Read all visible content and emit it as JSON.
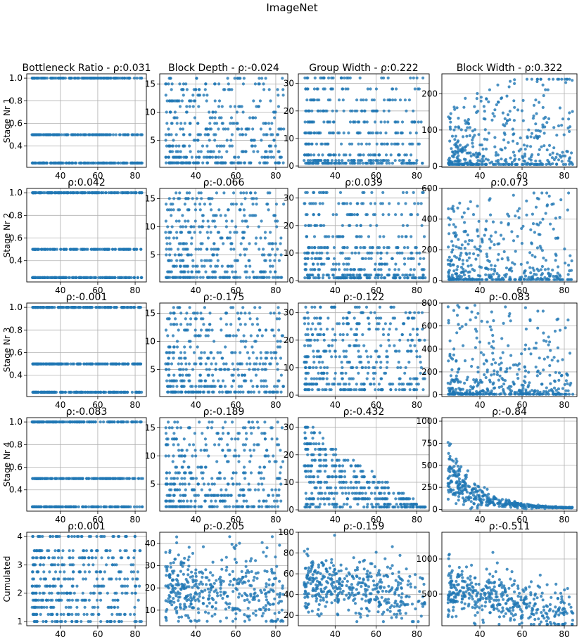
{
  "suptitle": "ImageNet",
  "xaxis": {
    "ticks": [
      40,
      60,
      80
    ],
    "lim": [
      22,
      86
    ]
  },
  "point_color": "#1f77b4",
  "chart_data": {
    "type": "scatter",
    "xlabel": "",
    "grid": true,
    "row_labels": [
      "Stage Nr 1",
      "Stage Nr 2",
      "Stage Nr 3",
      "Stage Nr 4",
      "Cumulated"
    ],
    "panels": [
      [
        {
          "title": "Bottleneck Ratio - ρ:0.031",
          "yticks": [
            "0.4",
            "0.6",
            "0.8",
            "1.0"
          ],
          "ytickvals": [
            0.4,
            0.6,
            0.8,
            1.0
          ],
          "ylim": [
            0.212,
            1.038
          ],
          "dist": {
            "kind": "levels",
            "levels": [
              0.25,
              0.5,
              1.0
            ]
          }
        },
        {
          "title": "Block Depth - ρ:-0.024",
          "yticks": [
            "5",
            "10",
            "15"
          ],
          "ytickvals": [
            5,
            10,
            15
          ],
          "ylim": [
            0.2,
            16.8
          ],
          "dist": {
            "kind": "ints",
            "min": 1,
            "max": 16
          }
        },
        {
          "title": "Group Width - ρ:0.222",
          "yticks": [
            "0",
            "10",
            "20",
            "30"
          ],
          "ytickvals": [
            0,
            10,
            20,
            30
          ],
          "ylim": [
            -0.5,
            33.5
          ],
          "dist": {
            "kind": "groups",
            "vals": [
              1,
              2,
              4,
              8,
              12,
              16,
              20,
              24,
              28,
              32
            ]
          }
        },
        {
          "title": "Block Width - ρ:0.322",
          "yticks": [
            "0",
            "100",
            "200"
          ],
          "ytickvals": [
            0,
            100,
            200
          ],
          "ylim": [
            -3,
            255
          ],
          "dist": {
            "kind": "skew",
            "max": 240,
            "pow": 2.2,
            "trend": 0.6
          }
        }
      ],
      [
        {
          "title": "ρ:0.042",
          "yticks": [
            "0.4",
            "0.6",
            "0.8",
            "1.0"
          ],
          "ytickvals": [
            0.4,
            0.6,
            0.8,
            1.0
          ],
          "ylim": [
            0.212,
            1.038
          ],
          "dist": {
            "kind": "levels",
            "levels": [
              0.25,
              0.5,
              1.0
            ]
          }
        },
        {
          "title": "ρ:-0.066",
          "yticks": [
            "5",
            "10",
            "15"
          ],
          "ytickvals": [
            5,
            10,
            15
          ],
          "ylim": [
            0.2,
            16.8
          ],
          "dist": {
            "kind": "ints",
            "min": 1,
            "max": 16
          }
        },
        {
          "title": "ρ:0.039",
          "yticks": [
            "0",
            "10",
            "20",
            "30"
          ],
          "ytickvals": [
            0,
            10,
            20,
            30
          ],
          "ylim": [
            -0.5,
            33.5
          ],
          "dist": {
            "kind": "groups",
            "vals": [
              1,
              2,
              4,
              6,
              8,
              10,
              12,
              16,
              20,
              24,
              28,
              32
            ]
          }
        },
        {
          "title": "ρ:0.073",
          "yticks": [
            "0",
            "200",
            "400",
            "600"
          ],
          "ytickvals": [
            0,
            200,
            400,
            600
          ],
          "ylim": [
            -10,
            600
          ],
          "dist": {
            "kind": "skew",
            "max": 570,
            "pow": 3.0,
            "trend": 0.2
          }
        }
      ],
      [
        {
          "title": "ρ:-0.001",
          "yticks": [
            "0.4",
            "0.6",
            "0.8",
            "1.0"
          ],
          "ytickvals": [
            0.4,
            0.6,
            0.8,
            1.0
          ],
          "ylim": [
            0.212,
            1.038
          ],
          "dist": {
            "kind": "levels",
            "levels": [
              0.25,
              0.5,
              1.0
            ]
          }
        },
        {
          "title": "ρ:-0.175",
          "yticks": [
            "5",
            "10",
            "15"
          ],
          "ytickvals": [
            5,
            10,
            15
          ],
          "ylim": [
            0.2,
            16.8
          ],
          "dist": {
            "kind": "ints",
            "min": 1,
            "max": 16
          }
        },
        {
          "title": "ρ:-0.122",
          "yticks": [
            "0",
            "10",
            "20",
            "30"
          ],
          "ytickvals": [
            0,
            10,
            20,
            30
          ],
          "ylim": [
            -0.5,
            33.5
          ],
          "dist": {
            "kind": "groups",
            "vals": [
              2,
              4,
              6,
              8,
              10,
              12,
              14,
              16,
              18,
              20,
              22,
              24,
              26,
              28,
              30,
              32
            ]
          }
        },
        {
          "title": "ρ:-0.083",
          "yticks": [
            "0",
            "200",
            "400",
            "600",
            "800"
          ],
          "ytickvals": [
            0,
            200,
            400,
            600,
            800
          ],
          "ylim": [
            -15,
            800
          ],
          "dist": {
            "kind": "skew",
            "max": 780,
            "pow": 3.2,
            "trend": -0.2
          }
        }
      ],
      [
        {
          "title": "ρ:-0.083",
          "yticks": [
            "0.4",
            "0.6",
            "0.8",
            "1.0"
          ],
          "ytickvals": [
            0.4,
            0.6,
            0.8,
            1.0
          ],
          "ylim": [
            0.212,
            1.038
          ],
          "dist": {
            "kind": "levels",
            "levels": [
              0.25,
              0.5,
              1.0
            ]
          }
        },
        {
          "title": "ρ:-0.189",
          "yticks": [
            "5",
            "10",
            "15"
          ],
          "ytickvals": [
            5,
            10,
            15
          ],
          "ylim": [
            0.2,
            16.8
          ],
          "dist": {
            "kind": "ints",
            "min": 1,
            "max": 16
          }
        },
        {
          "title": "ρ:-0.432",
          "yticks": [
            "0",
            "10",
            "20",
            "30"
          ],
          "ytickvals": [
            0,
            10,
            20,
            30
          ],
          "ylim": [
            -0.5,
            33.5
          ],
          "dist": {
            "kind": "decay",
            "max": 32,
            "floor": 1,
            "steps": [
              1,
              2,
              4,
              6,
              8,
              10,
              12,
              14,
              16,
              18,
              20,
              22,
              24,
              26,
              28,
              30,
              32
            ]
          }
        },
        {
          "title": "ρ:-0.84",
          "yticks": [
            "0",
            "250",
            "500",
            "750",
            "1000"
          ],
          "ytickvals": [
            0,
            250,
            500,
            750,
            1000
          ],
          "ylim": [
            -20,
            1040
          ],
          "dist": {
            "kind": "exp",
            "a": 420,
            "k": 0.075,
            "noise": 0.45
          }
        }
      ],
      [
        {
          "title": "ρ:0.001",
          "yticks": [
            "1",
            "2",
            "3",
            "4"
          ],
          "ytickvals": [
            1,
            2,
            3,
            4
          ],
          "ylim": [
            0.85,
            4.15
          ],
          "dist": {
            "kind": "levels",
            "levels": [
              1.0,
              1.25,
              1.5,
              1.75,
              2.0,
              2.25,
              2.5,
              2.75,
              3.0,
              3.25,
              3.5,
              4.0
            ]
          }
        },
        {
          "title": "ρ:-0.205",
          "yticks": [
            "10",
            "20",
            "30",
            "40"
          ],
          "ytickvals": [
            10,
            20,
            30,
            40
          ],
          "ylim": [
            3,
            45
          ],
          "dist": {
            "kind": "normal",
            "mu": 20,
            "sd": 8,
            "trend": -0.08,
            "min": 5,
            "max": 43
          }
        },
        {
          "title": "ρ:-0.159",
          "yticks": [
            "20",
            "40",
            "60",
            "80",
            "100"
          ],
          "ytickvals": [
            20,
            40,
            60,
            80,
            100
          ],
          "ylim": [
            10,
            100
          ],
          "dist": {
            "kind": "normal",
            "mu": 48,
            "sd": 14,
            "trend": -0.2,
            "min": 14,
            "max": 97
          }
        },
        {
          "title": "ρ:-0.511",
          "yticks": [
            "500",
            "1000"
          ],
          "ytickvals": [
            500,
            1000
          ],
          "ylim": [
            50,
            1380
          ],
          "dist": {
            "kind": "normal",
            "mu": 470,
            "sd": 180,
            "trend": -6.5,
            "min": 70,
            "max": 1290
          }
        }
      ]
    ]
  }
}
